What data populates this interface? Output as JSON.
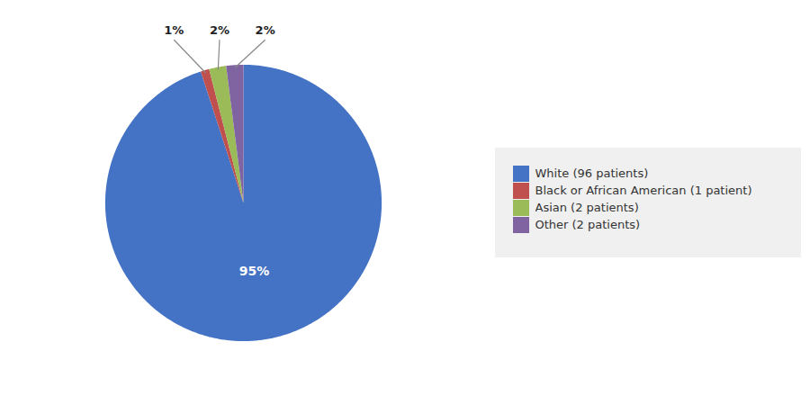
{
  "chart_data": {
    "type": "pie",
    "categories": [
      "White (96 patients)",
      "Black or African American (1 patient)",
      "Asian (2 patients)",
      "Other (2 patients)"
    ],
    "values": [
      95,
      1,
      2,
      2
    ],
    "value_labels": [
      "95%",
      "1%",
      "2%",
      "2%"
    ],
    "colors": [
      "#4472C4",
      "#C0504D",
      "#9BBB59",
      "#8064A2"
    ],
    "data_labels": true,
    "legend": "right"
  }
}
